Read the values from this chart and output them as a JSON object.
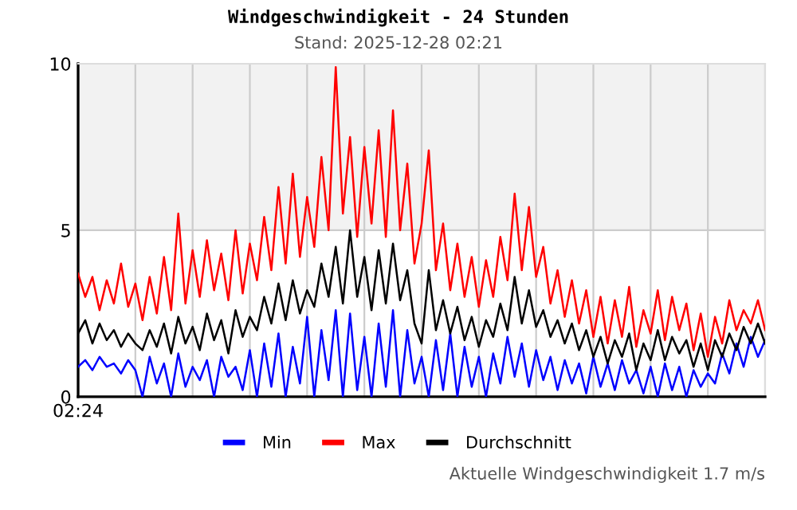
{
  "chart_data": {
    "type": "line",
    "title": "Windgeschwindigkeit - 24 Stunden",
    "subtitle": "Stand: 2025-12-28 02:21",
    "annotations": [
      "Aktuelle Windgeschwindigkeit 1.7 m/s"
    ],
    "categories": [
      "02:24",
      null,
      null,
      null,
      null,
      null,
      null,
      null,
      null,
      null,
      null,
      null,
      null,
      null,
      null,
      null,
      null,
      null,
      null,
      null,
      null,
      null,
      null,
      null,
      null,
      null,
      null,
      null,
      null,
      null,
      null,
      null,
      null,
      null,
      null,
      null,
      null,
      null,
      null,
      null,
      null,
      null,
      null,
      null,
      null,
      null,
      null,
      null,
      null,
      null,
      null,
      null,
      null,
      null,
      null,
      null,
      null,
      null,
      null,
      null,
      null,
      null,
      null,
      null,
      null,
      null,
      null,
      null,
      null,
      null,
      null,
      null,
      null,
      null,
      null,
      null,
      null,
      null,
      null,
      null,
      null,
      null,
      null,
      null,
      null,
      null,
      null,
      null,
      null,
      null,
      null,
      null,
      null,
      null,
      null,
      null,
      null
    ],
    "series": [
      {
        "name": "Min",
        "color": "#0000ff",
        "values": [
          0.9,
          1.1,
          0.8,
          1.2,
          0.9,
          1.0,
          0.7,
          1.1,
          0.8,
          0.0,
          1.2,
          0.4,
          1.0,
          0.0,
          1.3,
          0.3,
          0.9,
          0.5,
          1.1,
          0.0,
          1.2,
          0.6,
          0.9,
          0.2,
          1.4,
          0.0,
          1.6,
          0.3,
          1.9,
          0.0,
          1.5,
          0.4,
          2.4,
          0.0,
          2.0,
          0.5,
          2.6,
          0.0,
          2.5,
          0.2,
          1.8,
          0.0,
          2.2,
          0.3,
          2.6,
          0.0,
          2.0,
          0.4,
          1.2,
          0.0,
          1.7,
          0.2,
          1.9,
          0.0,
          1.5,
          0.3,
          1.2,
          0.0,
          1.3,
          0.4,
          1.8,
          0.6,
          1.6,
          0.3,
          1.4,
          0.5,
          1.2,
          0.2,
          1.1,
          0.4,
          1.0,
          0.1,
          1.2,
          0.3,
          1.0,
          0.2,
          1.1,
          0.4,
          0.8,
          0.1,
          0.9,
          0.0,
          1.0,
          0.2,
          0.9,
          0.0,
          0.8,
          0.3,
          0.7,
          0.4,
          1.3,
          0.7,
          1.6,
          0.9,
          1.8,
          1.2,
          1.7
        ]
      },
      {
        "name": "Max",
        "color": "#ff0000",
        "values": [
          3.7,
          3.0,
          3.6,
          2.6,
          3.5,
          2.8,
          4.0,
          2.7,
          3.4,
          2.3,
          3.6,
          2.5,
          4.2,
          2.6,
          5.5,
          2.8,
          4.4,
          3.0,
          4.7,
          3.2,
          4.3,
          2.9,
          5.0,
          3.1,
          4.6,
          3.5,
          5.4,
          3.8,
          6.3,
          4.0,
          6.7,
          4.2,
          6.0,
          4.5,
          7.2,
          5.0,
          9.9,
          5.5,
          7.8,
          4.8,
          7.5,
          5.2,
          8.0,
          4.8,
          8.6,
          5.0,
          7.0,
          4.0,
          5.2,
          7.4,
          3.8,
          5.2,
          3.2,
          4.6,
          3.0,
          4.2,
          2.7,
          4.1,
          3.0,
          4.8,
          3.5,
          6.1,
          3.8,
          5.7,
          3.6,
          4.5,
          2.8,
          3.8,
          2.4,
          3.5,
          2.2,
          3.2,
          1.8,
          3.0,
          1.6,
          2.9,
          1.8,
          3.3,
          1.5,
          2.6,
          1.9,
          3.2,
          1.7,
          3.0,
          2.0,
          2.8,
          1.4,
          2.5,
          1.2,
          2.4,
          1.6,
          2.9,
          2.0,
          2.6,
          2.2,
          2.9,
          2.0
        ]
      },
      {
        "name": "Durchschnitt",
        "color": "#000000",
        "values": [
          1.9,
          2.3,
          1.6,
          2.2,
          1.7,
          2.0,
          1.5,
          1.9,
          1.6,
          1.4,
          2.0,
          1.5,
          2.2,
          1.3,
          2.4,
          1.6,
          2.1,
          1.4,
          2.5,
          1.7,
          2.3,
          1.3,
          2.6,
          1.8,
          2.4,
          2.0,
          3.0,
          2.2,
          3.4,
          2.3,
          3.5,
          2.5,
          3.2,
          2.7,
          4.0,
          3.0,
          4.5,
          2.8,
          5.0,
          3.0,
          4.2,
          2.6,
          4.4,
          2.8,
          4.6,
          2.9,
          3.8,
          2.2,
          1.6,
          3.8,
          2.0,
          2.9,
          1.9,
          2.7,
          1.7,
          2.4,
          1.5,
          2.3,
          1.8,
          2.8,
          2.0,
          3.6,
          2.2,
          3.2,
          2.1,
          2.6,
          1.8,
          2.3,
          1.6,
          2.2,
          1.4,
          2.0,
          1.2,
          1.8,
          1.0,
          1.7,
          1.2,
          1.9,
          0.8,
          1.6,
          1.1,
          2.0,
          1.1,
          1.8,
          1.3,
          1.7,
          0.9,
          1.6,
          0.8,
          1.7,
          1.2,
          1.9,
          1.4,
          2.1,
          1.6,
          2.2,
          1.6
        ]
      }
    ],
    "ylim": [
      0,
      10
    ],
    "yticks": [
      0,
      5,
      10
    ],
    "bands": [
      {
        "axis": "y",
        "from": 5,
        "to": 10,
        "color": "#f2f2f2"
      }
    ],
    "grid": true,
    "legend": "bottom",
    "marker": "none",
    "line_style": "solid"
  }
}
